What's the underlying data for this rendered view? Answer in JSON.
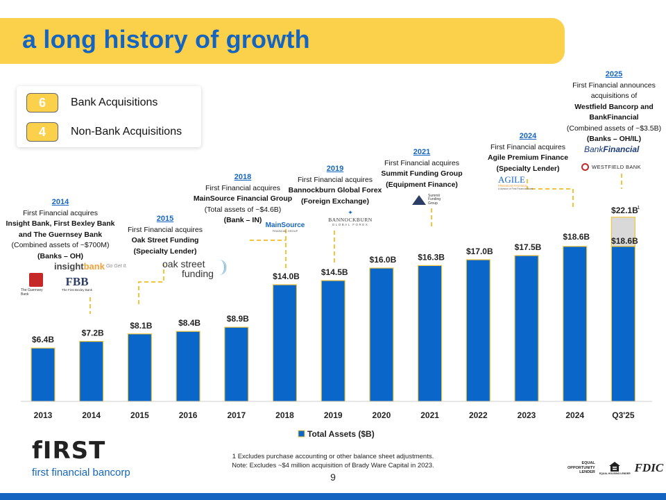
{
  "title": "a long history of growth",
  "acquisitions": [
    {
      "count": "6",
      "label": "Bank Acquisitions"
    },
    {
      "count": "4",
      "label": "Non-Bank Acquisitions"
    }
  ],
  "chart_data": {
    "type": "bar",
    "title": "",
    "xlabel": "",
    "ylabel": "",
    "ylim": [
      0,
      26
    ],
    "categories": [
      "2013",
      "2014",
      "2015",
      "2016",
      "2017",
      "2018",
      "2019",
      "2020",
      "2021",
      "2022",
      "2023",
      "2024",
      "Q3'25"
    ],
    "series": [
      {
        "name": "Total Assets ($B)",
        "values": [
          6.4,
          7.2,
          8.1,
          8.4,
          8.9,
          14.0,
          14.5,
          16.0,
          16.3,
          17.0,
          17.5,
          18.6,
          18.6
        ]
      }
    ],
    "pro_forma": {
      "category": "Q3'25",
      "value": 22.1,
      "label": "$22.1B",
      "footnote_mark": "1"
    },
    "data_labels": [
      "$6.4B",
      "$7.2B",
      "$8.1B",
      "$8.4B",
      "$8.9B",
      "$14.0B",
      "$14.5B",
      "$16.0B",
      "$16.3B",
      "$17.0B",
      "$17.5B",
      "$18.6B",
      "$18.6B"
    ],
    "legend": {
      "label": "Total Assets ($B)",
      "position": "bottom"
    },
    "colors": {
      "bar": "#0a66c8",
      "bar_outline": "#f2c53d",
      "pro_forma": "#d9d9d9",
      "connector": "#f2c53d"
    }
  },
  "annotations": [
    {
      "year": "2014",
      "lines": [
        "First Financial acquires"
      ],
      "bold": [
        "Insight Bank, First Bexley Bank",
        "and The Guernsey Bank"
      ],
      "extra": [
        "(Combined assets of ~$700M)"
      ],
      "tail": "(Banks – OH)"
    },
    {
      "year": "2015",
      "lines": [
        "First Financial acquires"
      ],
      "bold": [
        "Oak Street Funding"
      ],
      "extra": [],
      "tail": "(Specialty Lender)"
    },
    {
      "year": "2018",
      "lines": [
        "First Financial acquires"
      ],
      "bold": [
        "MainSource Financial Group"
      ],
      "extra": [
        "(Total assets of ~$4.6B)"
      ],
      "tail": "(Bank – IN)"
    },
    {
      "year": "2019",
      "lines": [
        "First Financial acquires"
      ],
      "bold": [
        "Bannockburn Global Forex"
      ],
      "extra": [],
      "tail": "(Foreign Exchange)"
    },
    {
      "year": "2021",
      "lines": [
        "First Financial acquires"
      ],
      "bold": [
        "Summit Funding Group"
      ],
      "extra": [],
      "tail": "(Equipment Finance)"
    },
    {
      "year": "2024",
      "lines": [
        "First Financial acquires"
      ],
      "bold": [
        "Agile Premium Finance"
      ],
      "extra": [],
      "tail": "(Specialty Lender)"
    },
    {
      "year": "2025",
      "lines": [
        "First Financial announces",
        "acquisitions of"
      ],
      "bold": [
        "Westfield Bancorp and",
        "BankFinancial"
      ],
      "extra": [
        "(Combined assets of ~$3.5B)"
      ],
      "tail": "(Banks – OH/IL)"
    }
  ],
  "logos": {
    "insight": {
      "main": "insight",
      "accent": "bank",
      "tag": "Go Get It."
    },
    "guernsey": "The Guernsey Bank",
    "fbb": {
      "mark": "FBB",
      "name": "The First Bexley Bank"
    },
    "oakstreet": {
      "line1": "oak street",
      "line2": "funding"
    },
    "mainsource": {
      "name": "MainSource",
      "sub": "FINANCIAL GROUP"
    },
    "bannockburn": {
      "name": "BANNOCKBURN",
      "sub": "GLOBAL FOREX"
    },
    "summit": [
      "Summit",
      "Funding",
      "Group"
    ],
    "agile": {
      "name": "AGILE",
      "sub": "PREMIUM FINANCE",
      "note": "A division of First Financial Bank"
    },
    "bankfinancial": {
      "part1": "Bank",
      "part2": "Financial"
    },
    "westfield": "WESTFIELD BANK"
  },
  "footnotes": [
    "1 Excludes purchase accounting or other balance sheet adjustments.",
    "Note: Excludes ~$4 million acquisition of Brady Ware Capital in 2023."
  ],
  "page_number": "9",
  "brand": {
    "mark": "fIRST",
    "name": "first financial bancorp"
  },
  "regulatory": {
    "eol": [
      "EQUAL",
      "OPPORTUNITY",
      "LENDER"
    ],
    "ehl": "EQUAL HOUSING LENDER",
    "fdic": "FDIC"
  }
}
